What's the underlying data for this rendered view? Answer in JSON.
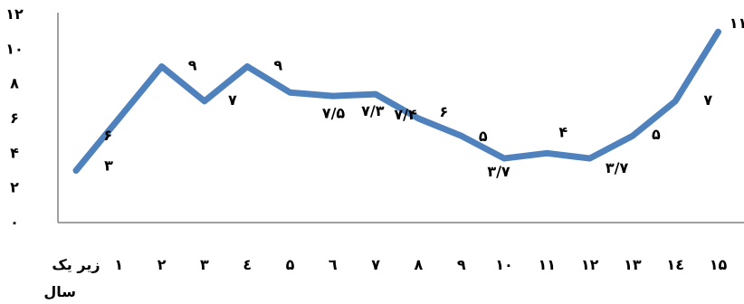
{
  "chart_data": {
    "type": "line",
    "categories": [
      "زیر یک سال",
      "۱",
      "۲",
      "۳",
      "٤",
      "۵",
      "٦",
      "۷",
      "۸",
      "۹",
      "۱۰",
      "۱۱",
      "۱۲",
      "۱۳",
      "۱٤",
      "۱۵"
    ],
    "y_ticks": [
      "۰",
      "۲",
      "۴",
      "۶",
      "۸",
      "۱۰",
      "۱۲"
    ],
    "ylim": [
      0,
      12
    ],
    "grid": false,
    "colors": {
      "series": "#4f81bd",
      "axis": "#808080"
    },
    "series": [
      {
        "values": [
          3,
          6,
          9,
          7,
          9,
          7.5,
          7.3,
          7.4,
          6,
          5,
          3.7,
          4,
          3.7,
          5,
          7,
          11
        ],
        "labels": [
          "۳",
          "۶",
          "۹",
          "۷",
          "۹",
          "۷/۵",
          "۷/۳",
          "۷/۴",
          "۶",
          "۵",
          "۳/۷",
          "۴",
          "۳/۷",
          "۵",
          "۷",
          "۱۱"
        ]
      }
    ]
  }
}
